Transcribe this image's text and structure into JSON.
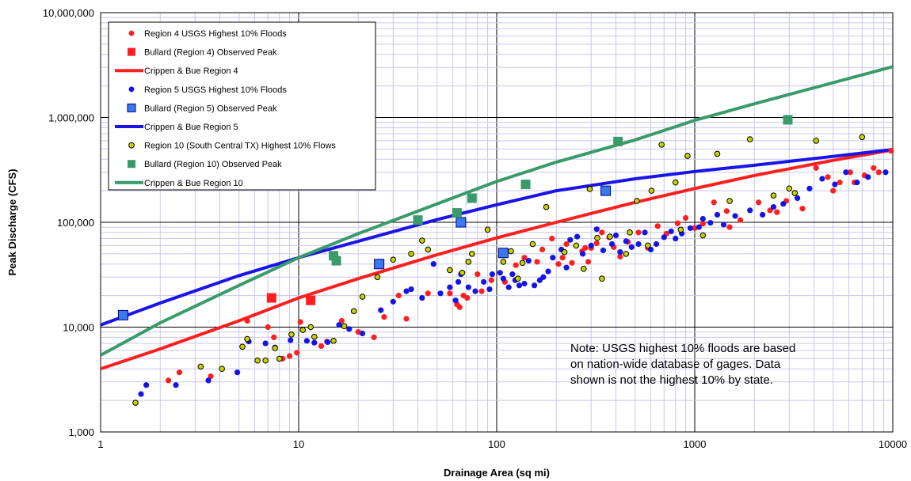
{
  "chart_data": {
    "type": "scatter",
    "x_scale": "log",
    "y_scale": "log",
    "xlim": [
      1,
      10000
    ],
    "ylim": [
      1000,
      10000000
    ],
    "xlabel": "Drainage Area (sq mi)",
    "ylabel": "Peak Discharge (CFS)",
    "x_ticks": [
      "1",
      "10",
      "100",
      "1000",
      "10000"
    ],
    "y_ticks": [
      "1,000",
      "10,000",
      "100,000",
      "1,000,000",
      "10,000,000"
    ],
    "grid": "major and minor (log)",
    "legend_position": "top-left",
    "note": [
      "Note: USGS highest 10% floods are based",
      "on nation-wide database of gages.  Data",
      "shown is not the highest 10% by state."
    ],
    "series": [
      {
        "name": "Region 4 USGS Highest 10% Floods",
        "kind": "points",
        "marker": "circle",
        "color": "#ff1f1f",
        "points": [
          [
            2.2,
            3100
          ],
          [
            2.5,
            3700
          ],
          [
            3.6,
            3400
          ],
          [
            5.5,
            11500
          ],
          [
            7,
            10000
          ],
          [
            7.5,
            8000
          ],
          [
            8.3,
            5000
          ],
          [
            9,
            5300
          ],
          [
            9.8,
            5700
          ],
          [
            10.2,
            11200
          ],
          [
            13,
            6600
          ],
          [
            13.9,
            7300
          ],
          [
            16.5,
            11500
          ],
          [
            20,
            9000
          ],
          [
            24,
            8000
          ],
          [
            27,
            12500
          ],
          [
            32,
            20000
          ],
          [
            35,
            12000
          ],
          [
            45,
            21000
          ],
          [
            58,
            21000
          ],
          [
            63,
            16500
          ],
          [
            65,
            15500
          ],
          [
            68,
            20000
          ],
          [
            71,
            19000
          ],
          [
            80,
            32000
          ],
          [
            84,
            22000
          ],
          [
            94,
            28000
          ],
          [
            110,
            27000
          ],
          [
            125,
            39000
          ],
          [
            138,
            46000
          ],
          [
            160,
            42000
          ],
          [
            170,
            55000
          ],
          [
            190,
            70000
          ],
          [
            205,
            40000
          ],
          [
            215,
            46000
          ],
          [
            225,
            62000
          ],
          [
            240,
            41000
          ],
          [
            270,
            53000
          ],
          [
            280,
            57000
          ],
          [
            290,
            42000
          ],
          [
            300,
            57000
          ],
          [
            320,
            63000
          ],
          [
            340,
            80000
          ],
          [
            370,
            72000
          ],
          [
            390,
            58000
          ],
          [
            420,
            47000
          ],
          [
            460,
            65000
          ],
          [
            520,
            80000
          ],
          [
            580,
            57000
          ],
          [
            650,
            92000
          ],
          [
            720,
            78000
          ],
          [
            820,
            98000
          ],
          [
            900,
            110000
          ],
          [
            1000,
            88000
          ],
          [
            1100,
            97000
          ],
          [
            1250,
            155000
          ],
          [
            1450,
            128000
          ],
          [
            1500,
            90000
          ],
          [
            1700,
            105000
          ],
          [
            2100,
            155000
          ],
          [
            2400,
            130000
          ],
          [
            2600,
            125000
          ],
          [
            2900,
            160000
          ],
          [
            3200,
            190000
          ],
          [
            3500,
            135000
          ],
          [
            4100,
            330000
          ],
          [
            4700,
            270000
          ],
          [
            5000,
            200000
          ],
          [
            5400,
            240000
          ],
          [
            6100,
            300000
          ],
          [
            6400,
            240000
          ],
          [
            7200,
            280000
          ],
          [
            8000,
            330000
          ],
          [
            8500,
            300000
          ],
          [
            9800,
            480000
          ]
        ]
      },
      {
        "name": "Bullard (Region 4) Observed Peak",
        "kind": "points",
        "marker": "square",
        "color": "#ff1f1f",
        "points": [
          [
            7.3,
            19000
          ],
          [
            11.5,
            18000
          ]
        ]
      },
      {
        "name": "Crippen & Bue Region 4",
        "kind": "line",
        "color": "#ff1f1f",
        "points": [
          [
            1,
            4000
          ],
          [
            2,
            6200
          ],
          [
            5,
            11500
          ],
          [
            10,
            19000
          ],
          [
            20,
            29000
          ],
          [
            50,
            49000
          ],
          [
            100,
            71000
          ],
          [
            200,
            100000
          ],
          [
            500,
            155000
          ],
          [
            1000,
            210000
          ],
          [
            2000,
            280000
          ],
          [
            5000,
            390000
          ],
          [
            10000,
            490000
          ]
        ]
      },
      {
        "name": "Region 5 USGS Highest 10% Floods",
        "kind": "points",
        "marker": "circle",
        "color": "#1414e6",
        "points": [
          [
            1.6,
            2300
          ],
          [
            1.7,
            2800
          ],
          [
            2.4,
            2800
          ],
          [
            3.5,
            3100
          ],
          [
            4.9,
            3700
          ],
          [
            5.6,
            7300
          ],
          [
            6.8,
            7000
          ],
          [
            7.6,
            6400
          ],
          [
            9.1,
            7500
          ],
          [
            11,
            7400
          ],
          [
            12,
            7100
          ],
          [
            14,
            7200
          ],
          [
            16,
            10500
          ],
          [
            18,
            9600
          ],
          [
            21,
            8700
          ],
          [
            26,
            14500
          ],
          [
            30,
            17500
          ],
          [
            35,
            22000
          ],
          [
            37,
            23000
          ],
          [
            42,
            19000
          ],
          [
            48,
            40000
          ],
          [
            52,
            21000
          ],
          [
            58,
            24000
          ],
          [
            62,
            18000
          ],
          [
            64,
            27000
          ],
          [
            66,
            32000
          ],
          [
            72,
            24000
          ],
          [
            78,
            22000
          ],
          [
            86,
            27000
          ],
          [
            92,
            23000
          ],
          [
            95,
            32000
          ],
          [
            104,
            33000
          ],
          [
            108,
            29000
          ],
          [
            115,
            24000
          ],
          [
            120,
            32000
          ],
          [
            124,
            28000
          ],
          [
            130,
            25000
          ],
          [
            138,
            26000
          ],
          [
            145,
            43000
          ],
          [
            155,
            25000
          ],
          [
            165,
            28000
          ],
          [
            172,
            30000
          ],
          [
            182,
            34000
          ],
          [
            192,
            46000
          ],
          [
            212,
            55000
          ],
          [
            225,
            37000
          ],
          [
            235,
            68000
          ],
          [
            255,
            73000
          ],
          [
            272,
            50000
          ],
          [
            300,
            60000
          ],
          [
            320,
            86000
          ],
          [
            345,
            54000
          ],
          [
            382,
            62000
          ],
          [
            400,
            75000
          ],
          [
            420,
            52000
          ],
          [
            450,
            66000
          ],
          [
            480,
            58000
          ],
          [
            520,
            62000
          ],
          [
            560,
            80000
          ],
          [
            600,
            55000
          ],
          [
            640,
            62000
          ],
          [
            700,
            72000
          ],
          [
            760,
            82000
          ],
          [
            800,
            70000
          ],
          [
            860,
            78000
          ],
          [
            950,
            88000
          ],
          [
            1050,
            90000
          ],
          [
            1100,
            108000
          ],
          [
            1200,
            99000
          ],
          [
            1300,
            118000
          ],
          [
            1400,
            95000
          ],
          [
            1600,
            115000
          ],
          [
            1900,
            130000
          ],
          [
            2200,
            118000
          ],
          [
            2500,
            140000
          ],
          [
            2800,
            150000
          ],
          [
            3300,
            170000
          ],
          [
            3800,
            210000
          ],
          [
            4400,
            260000
          ],
          [
            5100,
            230000
          ],
          [
            5800,
            300000
          ],
          [
            6600,
            240000
          ],
          [
            7500,
            270000
          ],
          [
            9200,
            300000
          ]
        ]
      },
      {
        "name": "Bullard (Region 5) Observed Peak",
        "kind": "points",
        "marker": "square",
        "color": "#3a78ee",
        "points": [
          [
            1.3,
            13000
          ],
          [
            25.5,
            40000
          ],
          [
            66,
            100000
          ],
          [
            108,
            51000
          ],
          [
            355,
            200000
          ]
        ]
      },
      {
        "name": "Crippen & Bue Region 5",
        "kind": "line",
        "color": "#1a14e6",
        "points": [
          [
            1,
            10500
          ],
          [
            2,
            17000
          ],
          [
            5,
            31000
          ],
          [
            10,
            46000
          ],
          [
            20,
            66000
          ],
          [
            50,
            106000
          ],
          [
            100,
            147000
          ],
          [
            200,
            200000
          ],
          [
            500,
            260000
          ],
          [
            1000,
            305000
          ],
          [
            2000,
            350000
          ],
          [
            5000,
            425000
          ],
          [
            10000,
            495000
          ]
        ]
      },
      {
        "name": "Region 10 (South Central TX) Highest 10% Flows",
        "kind": "points",
        "marker": "circle",
        "color": "#c8d400",
        "points": [
          [
            1.5,
            1900
          ],
          [
            3.2,
            4200
          ],
          [
            4.1,
            4000
          ],
          [
            5.2,
            6500
          ],
          [
            5.5,
            7700
          ],
          [
            6.2,
            4800
          ],
          [
            6.8,
            4800
          ],
          [
            7.6,
            6300
          ],
          [
            8,
            5000
          ],
          [
            9.2,
            8500
          ],
          [
            10.5,
            9400
          ],
          [
            11.5,
            10000
          ],
          [
            12,
            8100
          ],
          [
            15,
            7400
          ],
          [
            17,
            10200
          ],
          [
            19,
            14200
          ],
          [
            21,
            19500
          ],
          [
            25,
            30000
          ],
          [
            30,
            44000
          ],
          [
            37,
            50000
          ],
          [
            42,
            67000
          ],
          [
            45,
            55000
          ],
          [
            58,
            35000
          ],
          [
            67,
            33000
          ],
          [
            72,
            42000
          ],
          [
            75,
            50000
          ],
          [
            90,
            85000
          ],
          [
            108,
            42000
          ],
          [
            118,
            53000
          ],
          [
            128,
            29000
          ],
          [
            135,
            41000
          ],
          [
            152,
            62000
          ],
          [
            178,
            140000
          ],
          [
            220,
            52000
          ],
          [
            252,
            60000
          ],
          [
            275,
            36000
          ],
          [
            295,
            208000
          ],
          [
            322,
            71000
          ],
          [
            340,
            29000
          ],
          [
            373,
            73000
          ],
          [
            450,
            50000
          ],
          [
            470,
            80000
          ],
          [
            510,
            160000
          ],
          [
            580,
            60000
          ],
          [
            605,
            200000
          ],
          [
            680,
            550000
          ],
          [
            800,
            240000
          ],
          [
            850,
            85000
          ],
          [
            920,
            430000
          ],
          [
            1100,
            75000
          ],
          [
            1300,
            450000
          ],
          [
            1500,
            160000
          ],
          [
            1900,
            620000
          ],
          [
            2500,
            180000
          ],
          [
            3000,
            210000
          ],
          [
            3200,
            190000
          ],
          [
            4100,
            600000
          ],
          [
            7000,
            650000
          ]
        ]
      },
      {
        "name": "Bullard (Region 10) Observed Peak",
        "kind": "points",
        "marker": "square",
        "color": "#3a9a6a",
        "points": [
          [
            15,
            48000
          ],
          [
            15.5,
            43000
          ],
          [
            40,
            105000
          ],
          [
            63,
            123000
          ],
          [
            75,
            170000
          ],
          [
            140,
            230000
          ],
          [
            410,
            590000
          ],
          [
            2950,
            950000
          ]
        ]
      },
      {
        "name": "Crippen & Bue Region 10",
        "kind": "line",
        "color": "#3a9a6a",
        "points": [
          [
            1,
            5400
          ],
          [
            2,
            11000
          ],
          [
            5,
            25000
          ],
          [
            10,
            46000
          ],
          [
            20,
            78000
          ],
          [
            50,
            150000
          ],
          [
            100,
            245000
          ],
          [
            200,
            375000
          ],
          [
            500,
            610000
          ],
          [
            1000,
            940000
          ],
          [
            2000,
            1350000
          ],
          [
            5000,
            2150000
          ],
          [
            10000,
            3050000
          ]
        ]
      }
    ]
  }
}
